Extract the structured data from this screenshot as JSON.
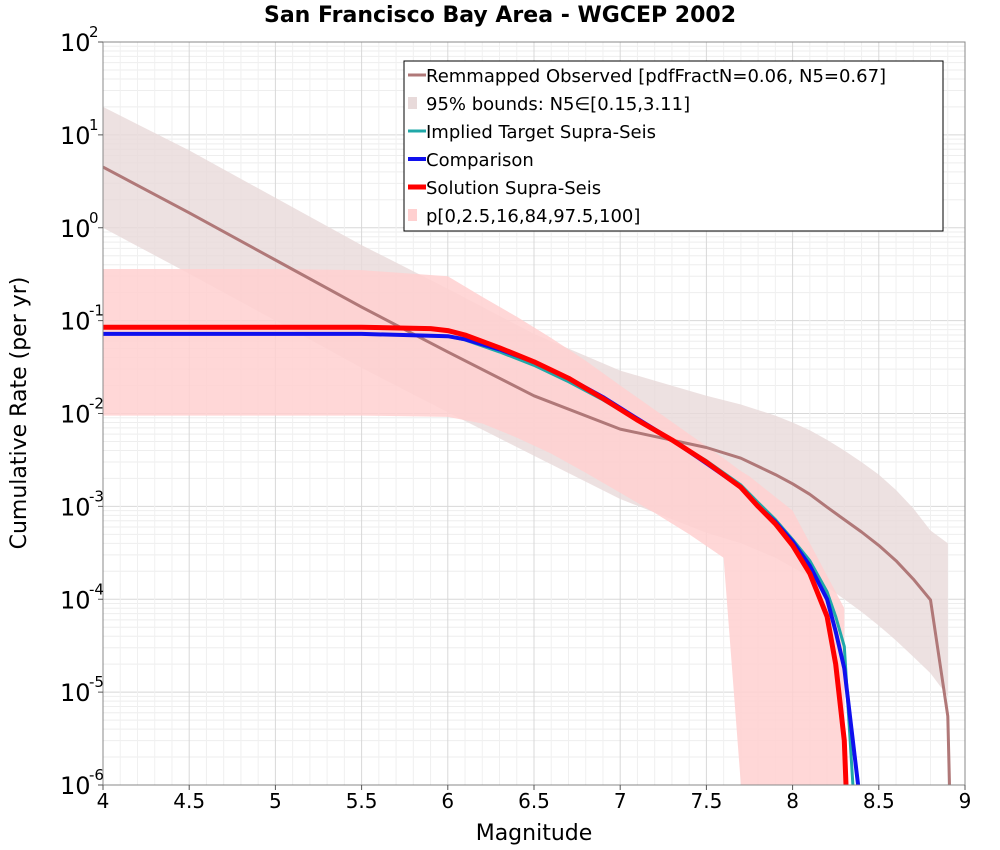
{
  "chart_data": {
    "type": "line",
    "title": "San Francisco Bay Area - WGCEP 2002",
    "xlabel": "Magnitude",
    "ylabel": "Cumulative Rate (per yr)",
    "xlim": [
      4,
      9
    ],
    "ylim": [
      1e-06,
      100
    ],
    "yscale": "log",
    "grid": true,
    "legend_position": "top-right",
    "x_ticks": [
      "4",
      "4.5",
      "5",
      "5.5",
      "6",
      "6.5",
      "7",
      "7.5",
      "8",
      "8.5",
      "9"
    ],
    "y_ticks": [
      {
        "base": "10",
        "exp": "2"
      },
      {
        "base": "10",
        "exp": "1"
      },
      {
        "base": "10",
        "exp": "0"
      },
      {
        "base": "10",
        "exp": "-1"
      },
      {
        "base": "10",
        "exp": "-2"
      },
      {
        "base": "10",
        "exp": "-3"
      },
      {
        "base": "10",
        "exp": "-4"
      },
      {
        "base": "10",
        "exp": "-5"
      },
      {
        "base": "10",
        "exp": "-6"
      }
    ],
    "legend": [
      {
        "label": "Remmapped Observed [pdfFractN=0.06, N5=0.67]",
        "kind": "line",
        "color": "#b07878"
      },
      {
        "label": "95% bounds: N5∈[0.15,3.11]",
        "kind": "band",
        "color": "#e8dada"
      },
      {
        "label": "Implied Target Supra-Seis",
        "kind": "line",
        "color": "#20a8a8"
      },
      {
        "label": "Comparison",
        "kind": "line",
        "color": "#1010ee"
      },
      {
        "label": "Solution Supra-Seis",
        "kind": "line",
        "color": "#ff0000"
      },
      {
        "label": "p[0,2.5,16,84,97.5,100]",
        "kind": "band",
        "color": "#ffd0d0"
      }
    ],
    "series": [
      {
        "name": "Remmapped Observed [pdfFractN=0.06, N5=0.67]",
        "color": "#b07878",
        "x": [
          4.0,
          4.5,
          5.0,
          5.5,
          6.0,
          6.5,
          7.0,
          7.5,
          7.7,
          7.9,
          8.0,
          8.1,
          8.2,
          8.3,
          8.4,
          8.5,
          8.6,
          8.7,
          8.8,
          8.9,
          8.91
        ],
        "y": [
          4.5,
          1.45,
          0.45,
          0.14,
          0.046,
          0.0155,
          0.0068,
          0.0043,
          0.0033,
          0.0022,
          0.00175,
          0.00135,
          0.00098,
          0.00072,
          0.00053,
          0.00038,
          0.00026,
          0.000165,
          9.85e-05,
          5.5e-06,
          1e-06
        ]
      },
      {
        "name": "95% bounds: N5∈[0.15,3.11]",
        "type": "band",
        "color": "#e8dada",
        "x": [
          4.0,
          4.5,
          5.0,
          5.5,
          6.0,
          6.5,
          7.0,
          7.5,
          7.7,
          7.9,
          8.0,
          8.1,
          8.2,
          8.3,
          8.4,
          8.5,
          8.6,
          8.7,
          8.8,
          8.9
        ],
        "upper": [
          20,
          6.8,
          2.1,
          0.65,
          0.22,
          0.072,
          0.029,
          0.0155,
          0.0125,
          0.0095,
          0.008,
          0.0066,
          0.0052,
          0.004,
          0.003,
          0.0022,
          0.0015,
          0.00095,
          0.00055,
          0.0004
        ],
        "lower": [
          1.0,
          0.32,
          0.1,
          0.031,
          0.0103,
          0.0035,
          0.0012,
          0.00052,
          0.0004,
          0.00028,
          0.00022,
          0.000175,
          0.000135,
          0.0001,
          7.3e-05,
          5.2e-05,
          3.6e-05,
          2.4e-05,
          1.6e-05,
          9e-06
        ]
      },
      {
        "name": "Implied Target Supra-Seis",
        "color": "#20a8a8",
        "x": [
          4.0,
          5.0,
          5.5,
          6.0,
          6.1,
          6.3,
          6.5,
          6.7,
          6.9,
          7.1,
          7.3,
          7.5,
          7.7,
          7.8,
          7.9,
          8.0,
          8.1,
          8.2,
          8.25,
          8.3,
          8.35
        ],
        "y": [
          0.072,
          0.072,
          0.072,
          0.068,
          0.062,
          0.046,
          0.033,
          0.022,
          0.014,
          0.0085,
          0.0052,
          0.0031,
          0.0017,
          0.0011,
          0.00072,
          0.00044,
          0.00026,
          0.00012,
          6.5e-05,
          3.1e-05,
          1e-06
        ]
      },
      {
        "name": "Comparison",
        "color": "#1010ee",
        "x": [
          4.0,
          5.0,
          5.5,
          6.0,
          6.1,
          6.3,
          6.5,
          6.7,
          6.9,
          7.1,
          7.3,
          7.5,
          7.7,
          7.8,
          7.9,
          8.0,
          8.1,
          8.2,
          8.25,
          8.3,
          8.38
        ],
        "y": [
          0.072,
          0.072,
          0.072,
          0.068,
          0.063,
          0.049,
          0.036,
          0.024,
          0.015,
          0.0088,
          0.0052,
          0.0029,
          0.0016,
          0.001,
          0.00068,
          0.00042,
          0.00023,
          0.0001,
          4.5e-05,
          1.8e-05,
          1e-06
        ]
      },
      {
        "name": "Solution Supra-Seis",
        "color": "#ff0000",
        "x": [
          4.0,
          5.0,
          5.5,
          5.9,
          6.0,
          6.1,
          6.3,
          6.5,
          6.7,
          6.9,
          7.1,
          7.3,
          7.5,
          7.7,
          7.8,
          7.9,
          8.0,
          8.1,
          8.2,
          8.25,
          8.3,
          8.31
        ],
        "y": [
          0.085,
          0.085,
          0.085,
          0.082,
          0.078,
          0.07,
          0.051,
          0.036,
          0.024,
          0.0145,
          0.0085,
          0.0052,
          0.003,
          0.0016,
          0.001,
          0.00065,
          0.00038,
          0.00019,
          6.5e-05,
          2e-05,
          3e-06,
          1e-06
        ]
      },
      {
        "name": "p[0,2.5,16,84,97.5,100]",
        "type": "band",
        "color": "#ffd0d0",
        "x": [
          4.0,
          5.0,
          5.5,
          6.0,
          6.2,
          6.4,
          6.6,
          6.8,
          7.0,
          7.2,
          7.4,
          7.6,
          7.7,
          7.75,
          8.0,
          8.3
        ],
        "upper": [
          0.36,
          0.36,
          0.35,
          0.3,
          0.18,
          0.11,
          0.065,
          0.037,
          0.02,
          0.011,
          0.006,
          0.0033,
          0.0024,
          0.0021,
          0.0009,
          8e-05
        ],
        "lower": [
          0.0095,
          0.0095,
          0.0095,
          0.0092,
          0.0078,
          0.0055,
          0.0037,
          0.0023,
          0.0014,
          0.00085,
          0.0005,
          0.00028,
          1e-06,
          1e-06,
          1e-06,
          1e-06
        ]
      }
    ]
  }
}
